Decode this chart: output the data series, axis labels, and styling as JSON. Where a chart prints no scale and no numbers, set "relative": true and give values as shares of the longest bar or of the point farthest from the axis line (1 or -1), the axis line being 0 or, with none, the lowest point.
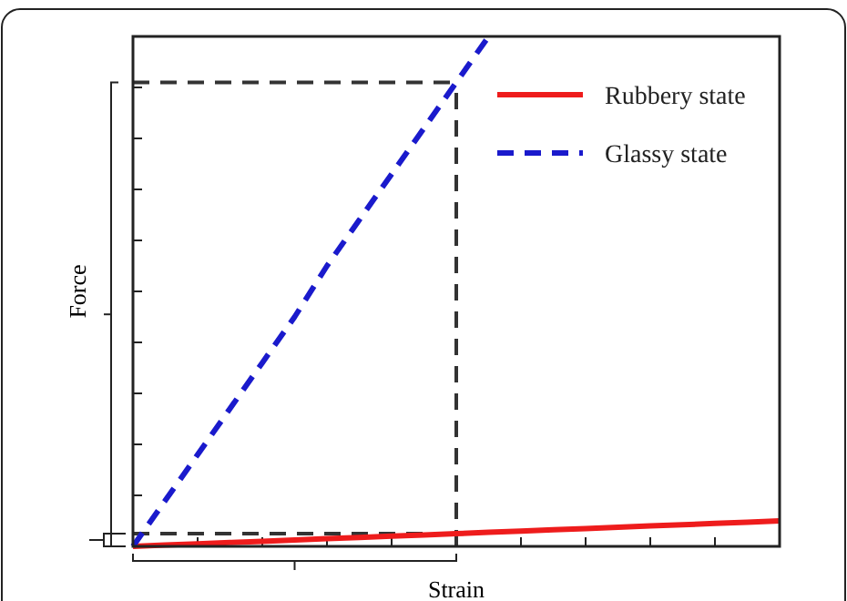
{
  "chart_data": {
    "type": "line",
    "relative": true,
    "xlabel": "Strain",
    "ylabel": "Force",
    "legend": "top right",
    "categories": [
      null,
      null,
      null,
      null,
      null,
      null,
      null,
      null,
      null,
      null,
      null,
      null,
      null,
      null,
      null,
      null,
      null,
      null,
      null,
      null,
      null
    ],
    "series": [
      {
        "name": "Rubbery state",
        "color": "#ee1c1c",
        "line_style": "solid",
        "values": [
          0,
          0.0025,
          0.005,
          0.0075,
          0.01,
          0.0125,
          0.015,
          0.0175,
          0.02,
          0.0225,
          0.025,
          0.0275,
          0.03,
          0.0325,
          0.035,
          0.0375,
          0.04,
          0.0425,
          0.045,
          0.0475,
          0.05
        ]
      },
      {
        "name": "Glassy state",
        "color": "#1a1acc",
        "line_style": "dashed",
        "values": [
          0,
          0.09,
          0.18,
          0.27,
          0.36,
          0.45,
          0.55,
          0.64,
          0.73,
          0.82,
          0.91,
          1,
          null,
          null,
          null,
          null,
          null,
          null,
          null,
          null,
          null
        ]
      }
    ],
    "ref_lines": [
      {
        "axis": "y",
        "value": 0.91,
        "color": "#333333",
        "line_style": "dashed"
      },
      {
        "axis": "y",
        "value": 0.025,
        "color": "#333333",
        "line_style": "dashed"
      }
    ]
  }
}
